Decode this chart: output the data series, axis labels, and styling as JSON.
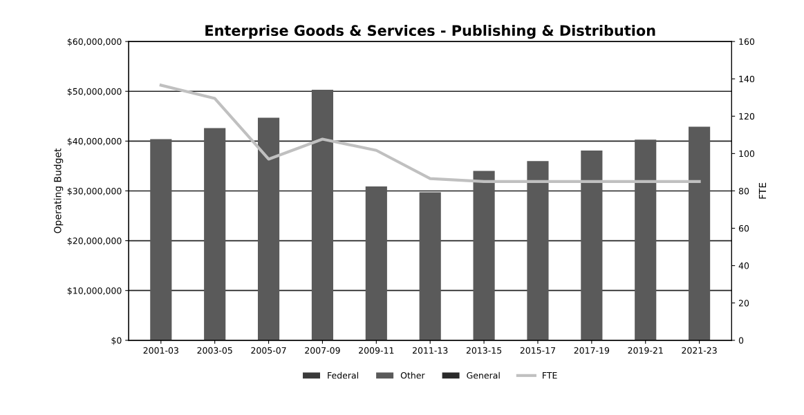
{
  "chart_data": {
    "type": "bar",
    "title": "Enterprise Goods & Services - Publishing & Distribution",
    "ylabel": "Operating Budget",
    "y2label": "FTE",
    "categories": [
      "2001-03",
      "2003-05",
      "2005-07",
      "2007-09",
      "2009-11",
      "2011-13",
      "2013-15",
      "2015-17",
      "2017-19",
      "2019-21",
      "2021-23"
    ],
    "series": [
      {
        "name": "Federal",
        "color": "#3a3a3a",
        "values": [
          null,
          null,
          null,
          null,
          null,
          null,
          null,
          null,
          null,
          null,
          null
        ]
      },
      {
        "name": "Other",
        "color": "#5a5a5a",
        "values": [
          40400000,
          42600000,
          44700000,
          50300000,
          30900000,
          29700000,
          34000000,
          36000000,
          38100000,
          40300000,
          42900000
        ]
      },
      {
        "name": "General",
        "color": "#2a2a2a",
        "values": [
          null,
          null,
          null,
          null,
          null,
          null,
          null,
          null,
          null,
          null,
          null
        ]
      },
      {
        "name": "FTE",
        "type": "line",
        "axis": "y2",
        "color": "#c0c0c0",
        "values": [
          136.6,
          129.5,
          97,
          107.7,
          101.7,
          86.6,
          85,
          85,
          85,
          85,
          85
        ]
      }
    ],
    "ylim": [
      0,
      60000000
    ],
    "yticks": [
      {
        "value": 0,
        "label": "$0"
      },
      {
        "value": 10000000,
        "label": "$10,000,000"
      },
      {
        "value": 20000000,
        "label": "$20,000,000"
      },
      {
        "value": 30000000,
        "label": "$30,000,000"
      },
      {
        "value": 40000000,
        "label": "$40,000,000"
      },
      {
        "value": 50000000,
        "label": "$50,000,000"
      },
      {
        "value": 60000000,
        "label": "$60,000,000"
      }
    ],
    "y2lim": [
      0,
      160
    ],
    "y2ticks": [
      0,
      20,
      40,
      60,
      80,
      100,
      120,
      140,
      160
    ],
    "grid": "y",
    "legend": "bottom"
  }
}
